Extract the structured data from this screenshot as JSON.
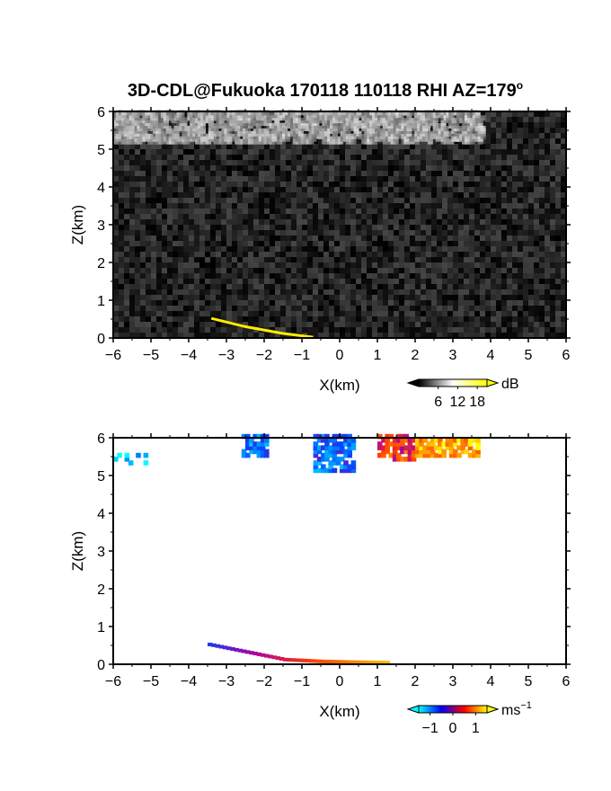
{
  "chart_data": [
    {
      "type": "heatmap",
      "title": "3D-CDL@Fukuoka 170118 110118 RHI AZ=179",
      "title_superscript": "o",
      "xlabel": "X(km)",
      "ylabel": "Z(km)",
      "xlim": [
        -6,
        6
      ],
      "ylim": [
        0,
        6
      ],
      "xticks": [
        "−6",
        "−5",
        "−4",
        "−3",
        "−2",
        "−1",
        "0",
        "1",
        "2",
        "3",
        "4",
        "5",
        "6"
      ],
      "yticks": [
        "0",
        "1",
        "2",
        "3",
        "4",
        "5",
        "6"
      ],
      "quantity": "backscatter intensity",
      "colorbar": {
        "unit": "dB",
        "ticks": [
          "6",
          "12",
          "18"
        ],
        "range": [
          0,
          21
        ],
        "colors": [
          "#000000",
          "#ffffff",
          "#ffff00"
        ]
      },
      "features": [
        {
          "name": "cloud layer",
          "x_range": [
            -6,
            3.8
          ],
          "z_range": [
            5.2,
            6.0
          ],
          "level_db": [
            8,
            16
          ]
        },
        {
          "name": "background noise",
          "x_range": [
            -6,
            6
          ],
          "z_range": [
            0,
            6
          ],
          "level_db": [
            0,
            5
          ]
        },
        {
          "name": "surface return",
          "points": [
            [
              -3.4,
              0.52
            ],
            [
              -2.5,
              0.3
            ],
            [
              -1.5,
              0.12
            ],
            [
              -0.7,
              0.02
            ]
          ],
          "level_db": 20
        }
      ]
    },
    {
      "type": "heatmap",
      "xlabel": "X(km)",
      "ylabel": "Z(km)",
      "xlim": [
        -6,
        6
      ],
      "ylim": [
        0,
        6
      ],
      "xticks": [
        "−6",
        "−5",
        "−4",
        "−3",
        "−2",
        "−1",
        "0",
        "1",
        "2",
        "3",
        "4",
        "5",
        "6"
      ],
      "yticks": [
        "0",
        "1",
        "2",
        "3",
        "4",
        "5",
        "6"
      ],
      "quantity": "Doppler velocity",
      "colorbar": {
        "unit": "ms",
        "unit_superscript": "−1",
        "ticks": [
          "−1",
          "0",
          "1"
        ],
        "range": [
          -1.5,
          1.5
        ],
        "colors": [
          "#00ffff",
          "#0000ff",
          "#ff0000",
          "#ffff00"
        ]
      },
      "features": [
        {
          "name": "cloud cell",
          "x_range": [
            -2.6,
            -1.9
          ],
          "z_range": [
            5.5,
            6.0
          ],
          "velocity": -0.8
        },
        {
          "name": "cloud cell",
          "x_range": [
            -0.7,
            0.4
          ],
          "z_range": [
            5.1,
            6.0
          ],
          "velocity": -0.7
        },
        {
          "name": "cloud cell",
          "x_range": [
            1.0,
            2.0
          ],
          "z_range": [
            5.4,
            6.0
          ],
          "velocity": 0.4
        },
        {
          "name": "cloud cell",
          "x_range": [
            2.0,
            3.7
          ],
          "z_range": [
            5.5,
            5.9
          ],
          "velocity": 1.1
        },
        {
          "name": "isolated echoes",
          "x_range": [
            -6,
            -5.2
          ],
          "z_range": [
            5.3,
            5.5
          ],
          "velocity": -1.2
        },
        {
          "name": "surface return",
          "points": [
            [
              -3.5,
              0.5
            ],
            [
              -2.5,
              0.3
            ],
            [
              -1.5,
              0.1
            ],
            [
              -0.5,
              0.05
            ],
            [
              0.5,
              0.03
            ],
            [
              1.3,
              0.02
            ]
          ],
          "velocity": [
            -0.4,
            1.2
          ]
        }
      ]
    }
  ]
}
